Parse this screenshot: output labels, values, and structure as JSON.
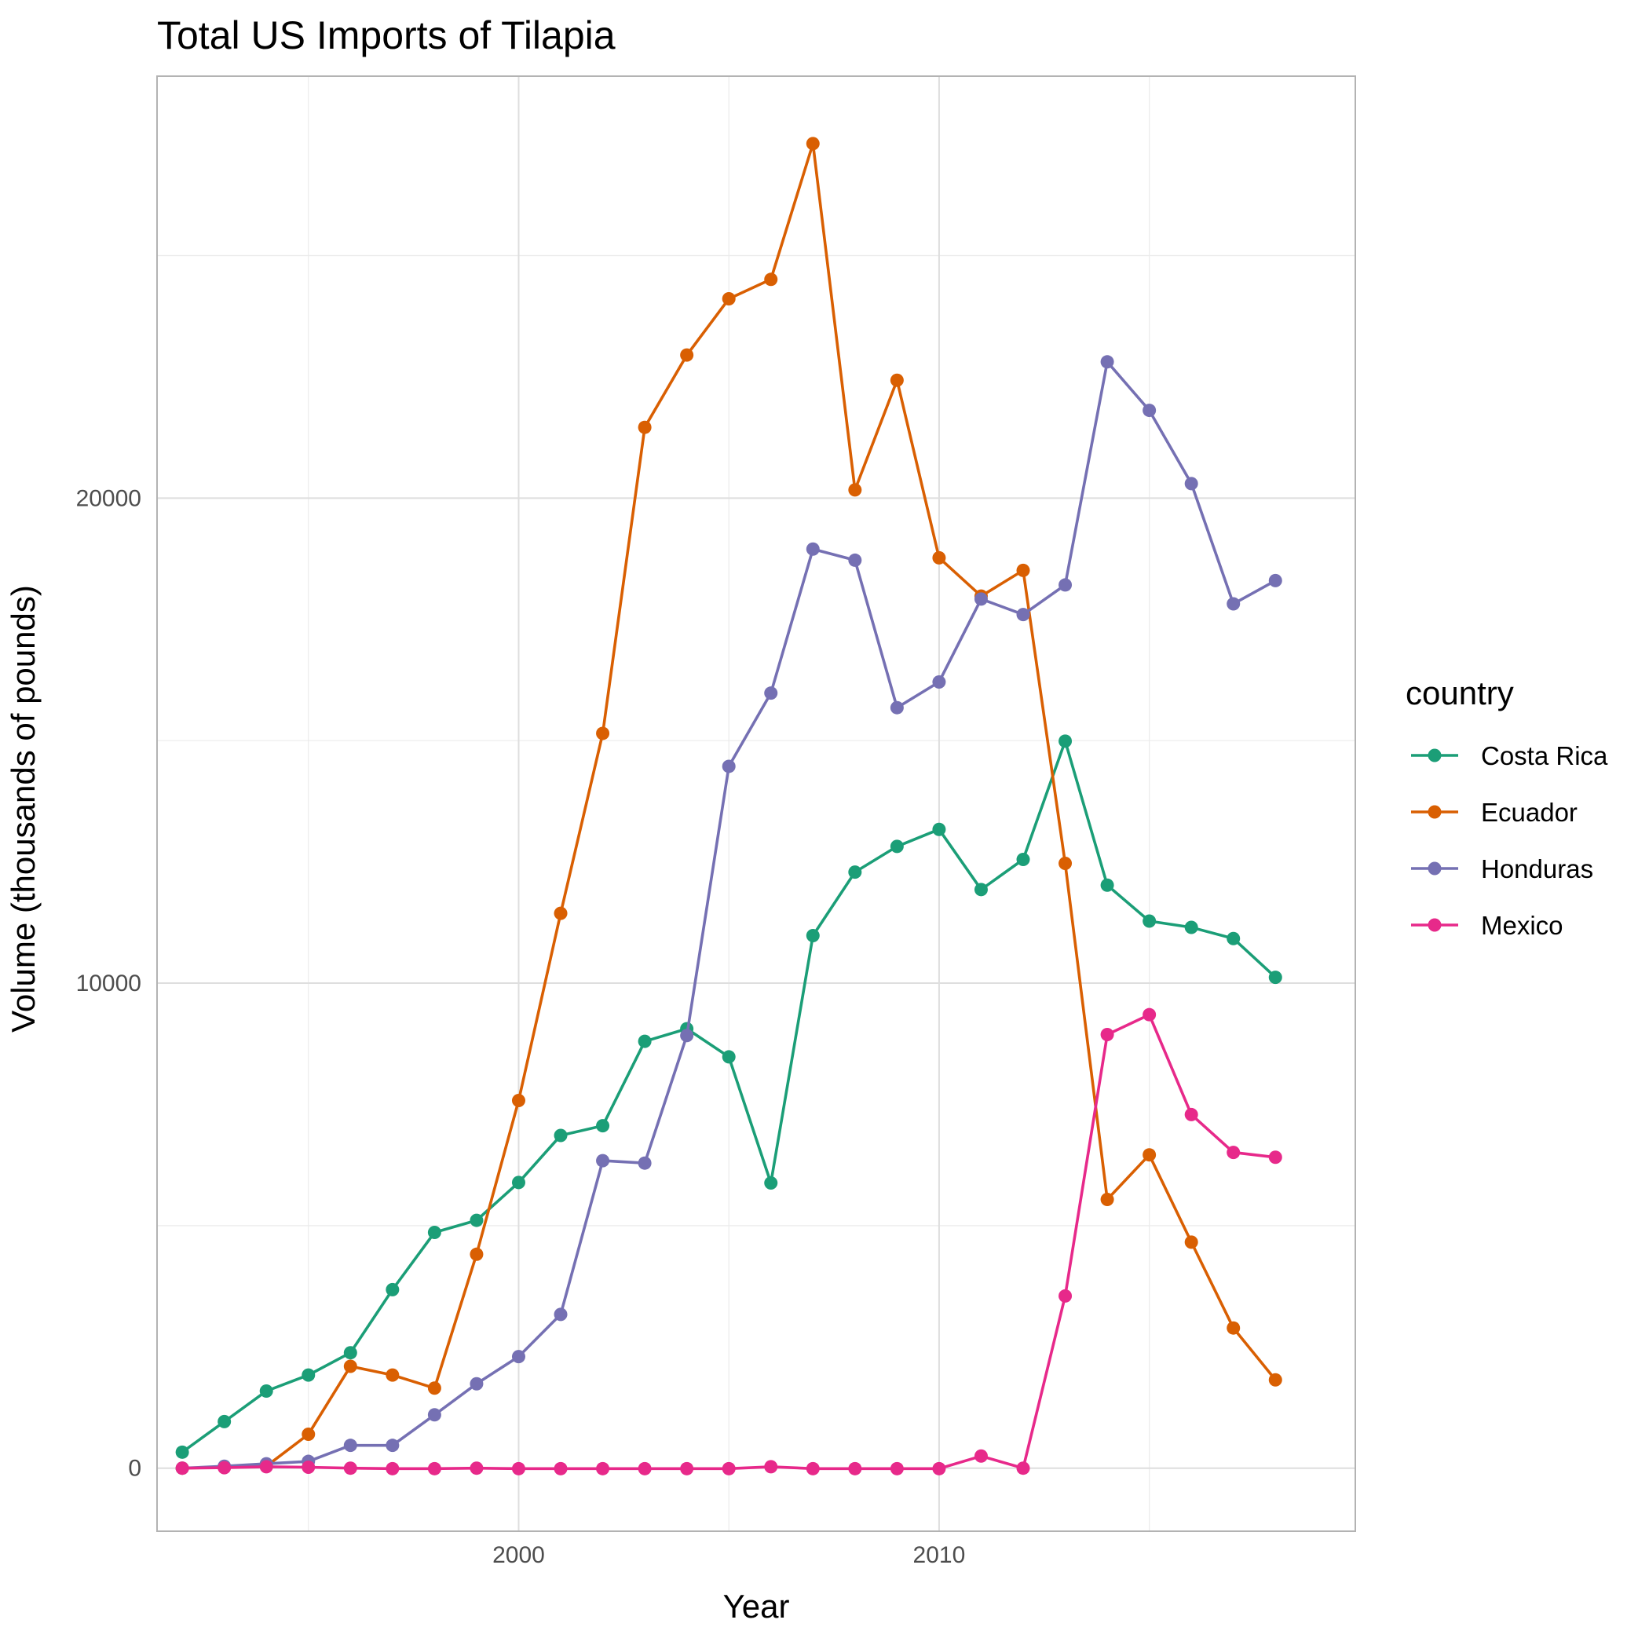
{
  "chart_data": {
    "type": "line",
    "title": "Total US Imports of Tilapia",
    "xlabel": "Year",
    "ylabel": "Volume (thousands of pounds)",
    "xlim": [
      1991.4,
      2019.9
    ],
    "ylim": [
      -1300,
      28700
    ],
    "x_ticks": [
      2000,
      2010
    ],
    "y_ticks": [
      0,
      10000,
      20000
    ],
    "x_minor": [
      1995,
      2005,
      2015
    ],
    "y_minor": [
      5000,
      15000,
      25000
    ],
    "grid": true,
    "legend": {
      "title": "country",
      "position": "right"
    },
    "x": [
      1992,
      1993,
      1994,
      1995,
      1996,
      1997,
      1998,
      1999,
      2000,
      2001,
      2002,
      2003,
      2004,
      2005,
      2006,
      2007,
      2008,
      2009,
      2010,
      2011,
      2012,
      2013,
      2014,
      2015,
      2016,
      2017,
      2018
    ],
    "series": [
      {
        "name": "Costa Rica",
        "color": "#1B9E77",
        "values": [
          330,
          960,
          1590,
          1920,
          2380,
          3680,
          4860,
          5110,
          5890,
          6860,
          7060,
          8800,
          9060,
          8480,
          5880,
          10980,
          12290,
          12820,
          13170,
          11930,
          12550,
          14990,
          12020,
          11280,
          11150,
          10920,
          10120
        ]
      },
      {
        "name": "Ecuador",
        "color": "#D95F02",
        "values": [
          0,
          20,
          40,
          700,
          2100,
          1920,
          1650,
          4410,
          7580,
          11440,
          15150,
          21460,
          22950,
          24110,
          24510,
          27310,
          20170,
          22430,
          18770,
          17980,
          18510,
          12470,
          5540,
          6460,
          4660,
          2890,
          1820
        ]
      },
      {
        "name": "Honduras",
        "color": "#7570B3",
        "values": [
          0,
          40,
          90,
          140,
          470,
          470,
          1100,
          1740,
          2300,
          3170,
          6340,
          6290,
          8920,
          14470,
          15980,
          18950,
          18720,
          15680,
          16210,
          17920,
          17600,
          18210,
          22810,
          21810,
          20300,
          17820,
          18300
        ]
      },
      {
        "name": "Mexico",
        "color": "#E7298A",
        "values": [
          0,
          10,
          30,
          20,
          0,
          -10,
          -10,
          0,
          -10,
          -10,
          -10,
          -10,
          -10,
          -10,
          30,
          -10,
          -10,
          -10,
          -10,
          250,
          0,
          3550,
          8940,
          9350,
          7290,
          6510,
          6410
        ]
      }
    ]
  }
}
